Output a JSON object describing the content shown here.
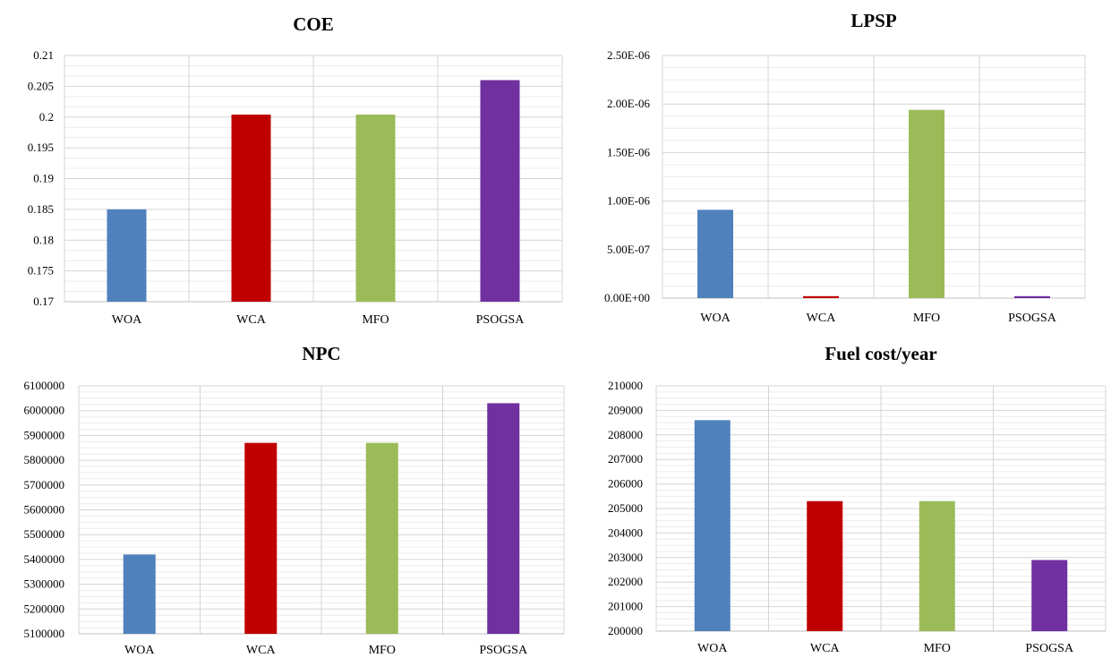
{
  "chart_data": [
    {
      "type": "bar",
      "title": "COE",
      "categories": [
        "WOA",
        "WCA",
        "MFO",
        "PSOGSA"
      ],
      "values": [
        0.185,
        0.2004,
        0.2004,
        0.206
      ],
      "ylim": [
        0.17,
        0.21
      ],
      "yticks": [
        "0.17",
        "0.175",
        "0.18",
        "0.185",
        "0.19",
        "0.195",
        "0.2",
        "0.205",
        "0.21"
      ],
      "colors": [
        "#4f81bd",
        "#c00000",
        "#9bbb59",
        "#7030a0"
      ],
      "grid": true,
      "legend": "none"
    },
    {
      "type": "bar",
      "title": "LPSP",
      "categories": [
        "WOA",
        "WCA",
        "MFO",
        "PSOGSA"
      ],
      "values": [
        9.1e-07,
        2e-08,
        1.94e-06,
        2e-08
      ],
      "ylim": [
        0,
        2.5e-06
      ],
      "yticks": [
        "0.00E+00",
        "5.00E-07",
        "1.00E-06",
        "1.50E-06",
        "2.00E-06",
        "2.50E-06"
      ],
      "colors": [
        "#4f81bd",
        "#c00000",
        "#9bbb59",
        "#7030a0"
      ],
      "grid": true,
      "legend": "none"
    },
    {
      "type": "bar",
      "title": "NPC",
      "categories": [
        "WOA",
        "WCA",
        "MFO",
        "PSOGSA"
      ],
      "values": [
        5420000,
        5870000,
        5870000,
        6030000
      ],
      "ylim": [
        5100000,
        6100000
      ],
      "yticks": [
        "5100000",
        "5200000",
        "5300000",
        "5400000",
        "5500000",
        "5600000",
        "5700000",
        "5800000",
        "5900000",
        "6000000",
        "6100000"
      ],
      "colors": [
        "#4f81bd",
        "#c00000",
        "#9bbb59",
        "#7030a0"
      ],
      "grid": true,
      "legend": "none"
    },
    {
      "type": "bar",
      "title": "Fuel cost/year",
      "categories": [
        "WOA",
        "WCA",
        "MFO",
        "PSOGSA"
      ],
      "values": [
        208600,
        205300,
        205300,
        202900
      ],
      "ylim": [
        200000,
        210000
      ],
      "yticks": [
        "200000",
        "201000",
        "202000",
        "203000",
        "204000",
        "205000",
        "206000",
        "207000",
        "208000",
        "209000",
        "210000"
      ],
      "colors": [
        "#4f81bd",
        "#c00000",
        "#9bbb59",
        "#7030a0"
      ],
      "grid": true,
      "legend": "none"
    }
  ]
}
